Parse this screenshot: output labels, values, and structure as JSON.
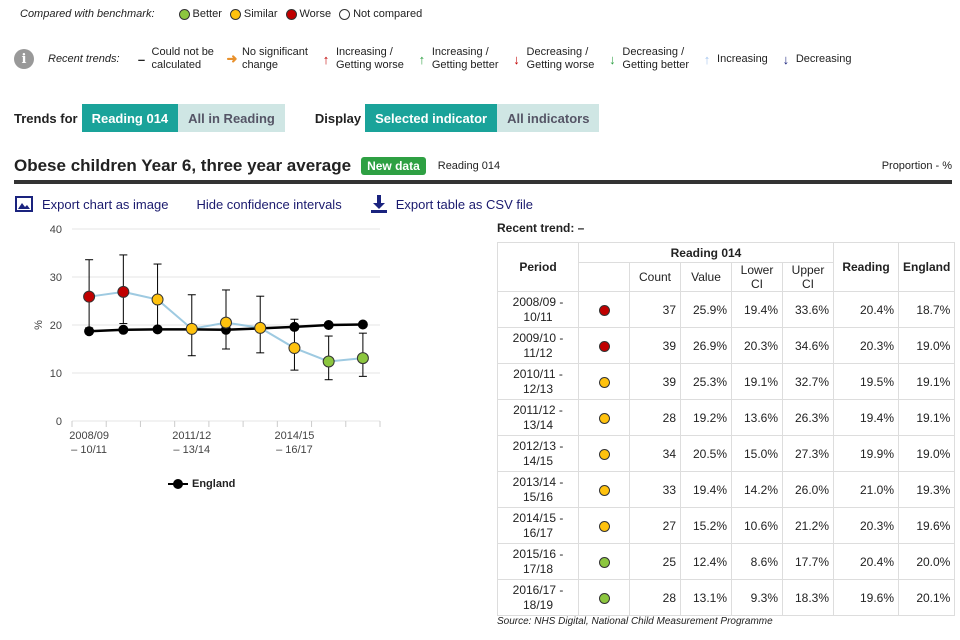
{
  "benchmark_legend": {
    "label": "Compared with benchmark:",
    "items": [
      {
        "label": "Better",
        "color": "#8cc63f"
      },
      {
        "label": "Similar",
        "color": "#ffc20e"
      },
      {
        "label": "Worse",
        "color": "#c00000"
      },
      {
        "label": "Not compared",
        "color": "#ffffff"
      }
    ]
  },
  "trend_legend": {
    "label": "Recent trends:",
    "items": [
      {
        "symbol": "–",
        "color": "#222222",
        "label": "Could not be calculated",
        "l1": "Could not be",
        "l2": "calculated"
      },
      {
        "symbol": "➜",
        "color": "#e8912d",
        "label": "No significant change",
        "l1": "No significant",
        "l2": "change"
      },
      {
        "symbol": "↑",
        "color": "#c00000",
        "label": "Increasing / Getting worse",
        "l1": "Increasing /",
        "l2": "Getting worse"
      },
      {
        "symbol": "↑",
        "color": "#2ea043",
        "label": "Increasing / Getting better",
        "l1": "Increasing /",
        "l2": "Getting better"
      },
      {
        "symbol": "↓",
        "color": "#c00000",
        "label": "Decreasing / Getting worse",
        "l1": "Decreasing /",
        "l2": "Getting worse"
      },
      {
        "symbol": "↓",
        "color": "#2ea043",
        "label": "Decreasing / Getting better",
        "l1": "Decreasing /",
        "l2": "Getting better"
      },
      {
        "symbol": "↑",
        "color": "#a7c7f0",
        "label": "Increasing",
        "l1": "Increasing",
        "l2": ""
      },
      {
        "symbol": "↓",
        "color": "#1a237e",
        "label": "Decreasing",
        "l1": "Decreasing",
        "l2": ""
      }
    ]
  },
  "controls": {
    "trends_for_label": "Trends for",
    "trends_for_options": [
      "Reading 014",
      "All in Reading"
    ],
    "display_label": "Display",
    "display_options": [
      "Selected indicator",
      "All indicators"
    ]
  },
  "indicator": {
    "title": "Obese children Year 6, three year average",
    "badge": "New data",
    "area": "Reading 014",
    "unit": "Proportion - %"
  },
  "actions": {
    "export_chart": "Export chart as image",
    "hide_ci": "Hide confidence intervals",
    "export_csv": "Export table as CSV file"
  },
  "recent_trend": "Recent trend:  –",
  "table": {
    "area_header": "Reading 014",
    "headers": {
      "period": "Period",
      "count": "Count",
      "value": "Value",
      "lower": "Lower CI",
      "upper": "Upper CI",
      "reading": "Reading",
      "england": "England"
    },
    "rows": [
      {
        "p1": "2008/09 -",
        "p2": "10/11",
        "status": "#c00000",
        "count": "37",
        "value": "25.9%",
        "lower": "19.4%",
        "upper": "33.6%",
        "reading": "20.4%",
        "england": "18.7%"
      },
      {
        "p1": "2009/10 -",
        "p2": "11/12",
        "status": "#c00000",
        "count": "39",
        "value": "26.9%",
        "lower": "20.3%",
        "upper": "34.6%",
        "reading": "20.3%",
        "england": "19.0%"
      },
      {
        "p1": "2010/11 -",
        "p2": "12/13",
        "status": "#ffc20e",
        "count": "39",
        "value": "25.3%",
        "lower": "19.1%",
        "upper": "32.7%",
        "reading": "19.5%",
        "england": "19.1%"
      },
      {
        "p1": "2011/12 -",
        "p2": "13/14",
        "status": "#ffc20e",
        "count": "28",
        "value": "19.2%",
        "lower": "13.6%",
        "upper": "26.3%",
        "reading": "19.4%",
        "england": "19.1%"
      },
      {
        "p1": "2012/13 -",
        "p2": "14/15",
        "status": "#ffc20e",
        "count": "34",
        "value": "20.5%",
        "lower": "15.0%",
        "upper": "27.3%",
        "reading": "19.9%",
        "england": "19.0%"
      },
      {
        "p1": "2013/14 -",
        "p2": "15/16",
        "status": "#ffc20e",
        "count": "33",
        "value": "19.4%",
        "lower": "14.2%",
        "upper": "26.0%",
        "reading": "21.0%",
        "england": "19.3%"
      },
      {
        "p1": "2014/15 -",
        "p2": "16/17",
        "status": "#ffc20e",
        "count": "27",
        "value": "15.2%",
        "lower": "10.6%",
        "upper": "21.2%",
        "reading": "20.3%",
        "england": "19.6%"
      },
      {
        "p1": "2015/16 -",
        "p2": "17/18",
        "status": "#8cc63f",
        "count": "25",
        "value": "12.4%",
        "lower": "8.6%",
        "upper": "17.7%",
        "reading": "20.4%",
        "england": "20.0%"
      },
      {
        "p1": "2016/17 -",
        "p2": "18/19",
        "status": "#8cc63f",
        "count": "28",
        "value": "13.1%",
        "lower": "9.3%",
        "upper": "18.3%",
        "reading": "19.6%",
        "england": "20.1%"
      }
    ]
  },
  "source": "Source: NHS Digital, National Child Measurement Programme",
  "chart_data": {
    "type": "line",
    "ylabel": "%",
    "ylim": [
      0,
      40
    ],
    "yticks": [
      "0",
      "10",
      "20",
      "30",
      "40"
    ],
    "x_tick_labels": [
      {
        "l1": "2008/09",
        "l2": "– 10/11",
        "index": 0
      },
      {
        "l1": "2011/12",
        "l2": "– 13/14",
        "index": 3
      },
      {
        "l1": "2014/15",
        "l2": "– 16/17",
        "index": 6
      }
    ],
    "area_series": {
      "values": [
        25.9,
        26.9,
        25.3,
        19.2,
        20.5,
        19.4,
        15.2,
        12.4,
        13.1
      ],
      "lower": [
        19.4,
        20.3,
        19.1,
        13.6,
        15.0,
        14.2,
        10.6,
        8.6,
        9.3
      ],
      "upper": [
        33.6,
        34.6,
        32.7,
        26.3,
        27.3,
        26.0,
        21.2,
        17.7,
        18.3
      ],
      "colors": [
        "#c00000",
        "#c00000",
        "#ffc20e",
        "#ffc20e",
        "#ffc20e",
        "#ffc20e",
        "#ffc20e",
        "#8cc63f",
        "#8cc63f"
      ],
      "line_color": "#9ecae1"
    },
    "england_series": {
      "name": "England",
      "values": [
        18.7,
        19.0,
        19.1,
        19.1,
        19.0,
        19.3,
        19.6,
        20.0,
        20.1
      ],
      "color": "#000000"
    },
    "legend_position": "bottom",
    "grid": true
  }
}
